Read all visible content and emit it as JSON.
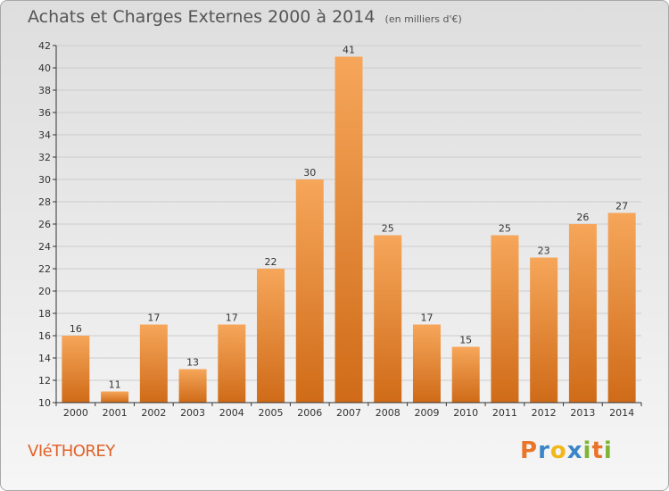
{
  "title": "Achats et Charges Externes 2000 à 2014",
  "subtitle": "(en milliers d'€)",
  "town": "VIéTHOREY",
  "logo": {
    "letters": [
      "P",
      "r",
      "o",
      "x",
      "i",
      "t",
      "i"
    ],
    "colors": [
      "#e8752a",
      "#3a86c8",
      "#f2b71a",
      "#3a86c8",
      "#7fb534",
      "#e8752a",
      "#7fb534"
    ]
  },
  "colors": {
    "bar_light": "#f6a65a",
    "bar_dark": "#cf6b18",
    "grid": "#cccccc",
    "axis": "#333333"
  },
  "chart_data": {
    "type": "bar",
    "categories": [
      "2000",
      "2001",
      "2002",
      "2003",
      "2004",
      "2005",
      "2006",
      "2007",
      "2008",
      "2009",
      "2010",
      "2011",
      "2012",
      "2013",
      "2014"
    ],
    "values": [
      16,
      11,
      17,
      13,
      17,
      22,
      30,
      41,
      25,
      17,
      15,
      25,
      23,
      26,
      27
    ],
    "ylim": [
      10,
      42
    ],
    "yticks": [
      10,
      12,
      14,
      16,
      18,
      20,
      22,
      24,
      26,
      28,
      30,
      32,
      34,
      36,
      38,
      40,
      42
    ],
    "grid": true
  }
}
